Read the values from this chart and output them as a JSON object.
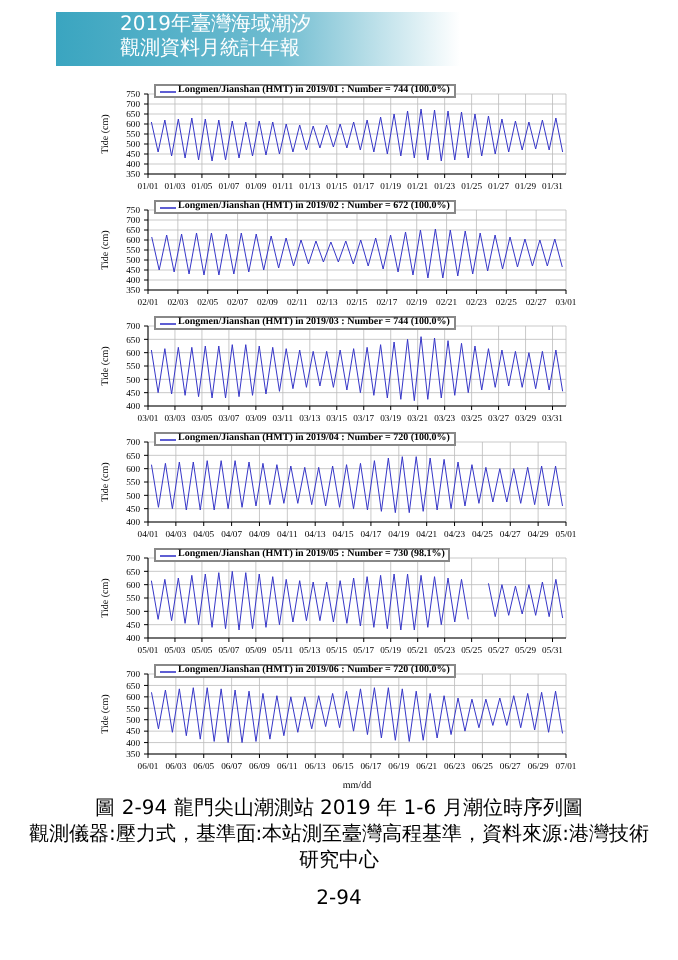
{
  "chart_data": [
    {
      "type": "line",
      "ylabel": "Tide (cm)",
      "ylim": [
        350,
        750
      ],
      "yticks": [
        350,
        400,
        450,
        500,
        550,
        600,
        650,
        700,
        750
      ],
      "grid": true,
      "legend": "top left",
      "annotations": [
        "2019年臺灣海域潮汐",
        "觀測資料月統計年報"
      ],
      "xlim": [
        "2019-01-01",
        "2019-02-01"
      ],
      "xticks": [
        {
          "value": "2019-01-01",
          "label": "01/01"
        },
        {
          "value": "2019-01-03",
          "label": "01/03"
        },
        {
          "value": "2019-01-05",
          "label": "01/05"
        },
        {
          "value": "2019-01-07",
          "label": "01/07"
        },
        {
          "value": "2019-01-09",
          "label": "01/09"
        },
        {
          "value": "2019-01-11",
          "label": "01/11"
        },
        {
          "value": "2019-01-13",
          "label": "01/13"
        },
        {
          "value": "2019-01-15",
          "label": "01/15"
        },
        {
          "value": "2019-01-17",
          "label": "01/17"
        },
        {
          "value": "2019-01-19",
          "label": "01/19"
        },
        {
          "value": "2019-01-21",
          "label": "01/21"
        },
        {
          "value": "2019-01-23",
          "label": "01/23"
        },
        {
          "value": "2019-01-25",
          "label": "01/25"
        },
        {
          "value": "2019-01-27",
          "label": "01/27"
        },
        {
          "value": "2019-01-29",
          "label": "01/29"
        },
        {
          "value": "2019-01-31",
          "label": "01/31"
        }
      ],
      "x": [
        "2019-01-01T06:00",
        "2019-01-01T18:00",
        "2019-01-02T06:00",
        "2019-01-02T18:00",
        "2019-01-03T06:00",
        "2019-01-03T18:00",
        "2019-01-04T06:00",
        "2019-01-04T18:00",
        "2019-01-05T06:00",
        "2019-01-05T18:00",
        "2019-01-06T06:00",
        "2019-01-06T18:00",
        "2019-01-07T06:00",
        "2019-01-07T18:00",
        "2019-01-08T06:00",
        "2019-01-08T18:00",
        "2019-01-09T06:00",
        "2019-01-09T18:00",
        "2019-01-10T06:00",
        "2019-01-10T18:00",
        "2019-01-11T06:00",
        "2019-01-11T18:00",
        "2019-01-12T06:00",
        "2019-01-12T18:00",
        "2019-01-13T06:00",
        "2019-01-13T18:00",
        "2019-01-14T06:00",
        "2019-01-14T18:00",
        "2019-01-15T06:00",
        "2019-01-15T18:00",
        "2019-01-16T06:00",
        "2019-01-16T18:00",
        "2019-01-17T06:00",
        "2019-01-17T18:00",
        "2019-01-18T06:00",
        "2019-01-18T18:00",
        "2019-01-19T06:00",
        "2019-01-19T18:00",
        "2019-01-20T06:00",
        "2019-01-20T18:00",
        "2019-01-21T06:00",
        "2019-01-21T18:00",
        "2019-01-22T06:00",
        "2019-01-22T18:00",
        "2019-01-23T06:00",
        "2019-01-23T18:00",
        "2019-01-24T06:00",
        "2019-01-24T18:00",
        "2019-01-25T06:00",
        "2019-01-25T18:00",
        "2019-01-26T06:00",
        "2019-01-26T18:00",
        "2019-01-27T06:00",
        "2019-01-27T18:00",
        "2019-01-28T06:00",
        "2019-01-28T18:00",
        "2019-01-29T06:00",
        "2019-01-29T18:00",
        "2019-01-30T06:00",
        "2019-01-30T18:00",
        "2019-01-31T06:00",
        "2019-01-31T18:00"
      ],
      "series": [
        {
          "name": "Longmen/Jianshan (HMT) in 2019/01 : Number = 744 (100.0%)",
          "color": "#3636c8",
          "values": [
            610,
            460,
            620,
            440,
            625,
            430,
            630,
            420,
            625,
            415,
            620,
            420,
            615,
            430,
            610,
            440,
            615,
            445,
            610,
            450,
            600,
            460,
            595,
            470,
            590,
            480,
            595,
            485,
            600,
            480,
            610,
            470,
            620,
            460,
            635,
            450,
            650,
            440,
            665,
            430,
            675,
            420,
            670,
            415,
            665,
            420,
            660,
            430,
            650,
            440,
            640,
            450,
            625,
            460,
            615,
            470,
            610,
            475,
            620,
            470,
            630,
            460
          ]
        }
      ]
    },
    {
      "type": "line",
      "ylabel": "Tide (cm)",
      "ylim": [
        350,
        750
      ],
      "yticks": [
        350,
        400,
        450,
        500,
        550,
        600,
        650,
        700,
        750
      ],
      "grid": true,
      "legend": "top left",
      "xlim": [
        "2019-02-01",
        "2019-03-01"
      ],
      "xticks": [
        {
          "value": "2019-02-01",
          "label": "02/01"
        },
        {
          "value": "2019-02-03",
          "label": "02/03"
        },
        {
          "value": "2019-02-05",
          "label": "02/05"
        },
        {
          "value": "2019-02-07",
          "label": "02/07"
        },
        {
          "value": "2019-02-09",
          "label": "02/09"
        },
        {
          "value": "2019-02-11",
          "label": "02/11"
        },
        {
          "value": "2019-02-13",
          "label": "02/13"
        },
        {
          "value": "2019-02-15",
          "label": "02/15"
        },
        {
          "value": "2019-02-17",
          "label": "02/17"
        },
        {
          "value": "2019-02-19",
          "label": "02/19"
        },
        {
          "value": "2019-02-21",
          "label": "02/21"
        },
        {
          "value": "2019-02-23",
          "label": "02/23"
        },
        {
          "value": "2019-02-25",
          "label": "02/25"
        },
        {
          "value": "2019-02-27",
          "label": "02/27"
        },
        {
          "value": "2019-03-01",
          "label": "03/01"
        }
      ],
      "x": [
        "2019-02-01T06:00",
        "2019-02-01T18:00",
        "2019-02-02T06:00",
        "2019-02-02T18:00",
        "2019-02-03T06:00",
        "2019-02-03T18:00",
        "2019-02-04T06:00",
        "2019-02-04T18:00",
        "2019-02-05T06:00",
        "2019-02-05T18:00",
        "2019-02-06T06:00",
        "2019-02-06T18:00",
        "2019-02-07T06:00",
        "2019-02-07T18:00",
        "2019-02-08T06:00",
        "2019-02-08T18:00",
        "2019-02-09T06:00",
        "2019-02-09T18:00",
        "2019-02-10T06:00",
        "2019-02-10T18:00",
        "2019-02-11T06:00",
        "2019-02-11T18:00",
        "2019-02-12T06:00",
        "2019-02-12T18:00",
        "2019-02-13T06:00",
        "2019-02-13T18:00",
        "2019-02-14T06:00",
        "2019-02-14T18:00",
        "2019-02-15T06:00",
        "2019-02-15T18:00",
        "2019-02-16T06:00",
        "2019-02-16T18:00",
        "2019-02-17T06:00",
        "2019-02-17T18:00",
        "2019-02-18T06:00",
        "2019-02-18T18:00",
        "2019-02-19T06:00",
        "2019-02-19T18:00",
        "2019-02-20T06:00",
        "2019-02-20T18:00",
        "2019-02-21T06:00",
        "2019-02-21T18:00",
        "2019-02-22T06:00",
        "2019-02-22T18:00",
        "2019-02-23T06:00",
        "2019-02-23T18:00",
        "2019-02-24T06:00",
        "2019-02-24T18:00",
        "2019-02-25T06:00",
        "2019-02-25T18:00",
        "2019-02-26T06:00",
        "2019-02-26T18:00",
        "2019-02-27T06:00",
        "2019-02-27T18:00",
        "2019-02-28T06:00",
        "2019-02-28T18:00"
      ],
      "series": [
        {
          "name": "Longmen/Jianshan (HMT) in 2019/02 : Number = 672 (100.0%)",
          "color": "#3636c8",
          "values": [
            615,
            450,
            625,
            440,
            630,
            430,
            635,
            425,
            635,
            425,
            630,
            430,
            635,
            440,
            630,
            450,
            620,
            460,
            610,
            470,
            600,
            480,
            595,
            490,
            590,
            490,
            595,
            480,
            600,
            470,
            610,
            455,
            625,
            440,
            640,
            425,
            650,
            410,
            655,
            410,
            650,
            420,
            645,
            430,
            635,
            445,
            625,
            455,
            615,
            465,
            605,
            470,
            600,
            470,
            605,
            465
          ]
        }
      ]
    },
    {
      "type": "line",
      "ylabel": "Tide (cm)",
      "ylim": [
        400,
        700
      ],
      "yticks": [
        400,
        450,
        500,
        550,
        600,
        650,
        700
      ],
      "grid": true,
      "legend": "top left",
      "xlim": [
        "2019-03-01",
        "2019-04-01"
      ],
      "xticks": [
        {
          "value": "2019-03-01",
          "label": "03/01"
        },
        {
          "value": "2019-03-03",
          "label": "03/03"
        },
        {
          "value": "2019-03-05",
          "label": "03/05"
        },
        {
          "value": "2019-03-07",
          "label": "03/07"
        },
        {
          "value": "2019-03-09",
          "label": "03/09"
        },
        {
          "value": "2019-03-11",
          "label": "03/11"
        },
        {
          "value": "2019-03-13",
          "label": "03/13"
        },
        {
          "value": "2019-03-15",
          "label": "03/15"
        },
        {
          "value": "2019-03-17",
          "label": "03/17"
        },
        {
          "value": "2019-03-19",
          "label": "03/19"
        },
        {
          "value": "2019-03-21",
          "label": "03/21"
        },
        {
          "value": "2019-03-23",
          "label": "03/23"
        },
        {
          "value": "2019-03-25",
          "label": "03/25"
        },
        {
          "value": "2019-03-27",
          "label": "03/27"
        },
        {
          "value": "2019-03-29",
          "label": "03/29"
        },
        {
          "value": "2019-03-31",
          "label": "03/31"
        }
      ],
      "x": [
        "2019-03-01T06:00",
        "2019-03-01T18:00",
        "2019-03-02T06:00",
        "2019-03-02T18:00",
        "2019-03-03T06:00",
        "2019-03-03T18:00",
        "2019-03-04T06:00",
        "2019-03-04T18:00",
        "2019-03-05T06:00",
        "2019-03-05T18:00",
        "2019-03-06T06:00",
        "2019-03-06T18:00",
        "2019-03-07T06:00",
        "2019-03-07T18:00",
        "2019-03-08T06:00",
        "2019-03-08T18:00",
        "2019-03-09T06:00",
        "2019-03-09T18:00",
        "2019-03-10T06:00",
        "2019-03-10T18:00",
        "2019-03-11T06:00",
        "2019-03-11T18:00",
        "2019-03-12T06:00",
        "2019-03-12T18:00",
        "2019-03-13T06:00",
        "2019-03-13T18:00",
        "2019-03-14T06:00",
        "2019-03-14T18:00",
        "2019-03-15T06:00",
        "2019-03-15T18:00",
        "2019-03-16T06:00",
        "2019-03-16T18:00",
        "2019-03-17T06:00",
        "2019-03-17T18:00",
        "2019-03-18T06:00",
        "2019-03-18T18:00",
        "2019-03-19T06:00",
        "2019-03-19T18:00",
        "2019-03-20T06:00",
        "2019-03-20T18:00",
        "2019-03-21T06:00",
        "2019-03-21T18:00",
        "2019-03-22T06:00",
        "2019-03-22T18:00",
        "2019-03-23T06:00",
        "2019-03-23T18:00",
        "2019-03-24T06:00",
        "2019-03-24T18:00",
        "2019-03-25T06:00",
        "2019-03-25T18:00",
        "2019-03-26T06:00",
        "2019-03-26T18:00",
        "2019-03-27T06:00",
        "2019-03-27T18:00",
        "2019-03-28T06:00",
        "2019-03-28T18:00",
        "2019-03-29T06:00",
        "2019-03-29T18:00",
        "2019-03-30T06:00",
        "2019-03-30T18:00",
        "2019-03-31T06:00",
        "2019-03-31T18:00"
      ],
      "series": [
        {
          "name": "Longmen/Jianshan (HMT) in 2019/03 : Number = 744 (100.0%)",
          "color": "#3636c8",
          "values": [
            610,
            450,
            615,
            445,
            620,
            440,
            620,
            435,
            625,
            430,
            625,
            430,
            630,
            435,
            630,
            440,
            625,
            445,
            620,
            455,
            615,
            465,
            610,
            470,
            605,
            475,
            605,
            470,
            610,
            460,
            615,
            450,
            620,
            440,
            630,
            430,
            640,
            425,
            650,
            420,
            660,
            425,
            655,
            430,
            645,
            440,
            635,
            450,
            625,
            460,
            615,
            470,
            610,
            475,
            605,
            470,
            600,
            465,
            605,
            460,
            610,
            455
          ]
        }
      ]
    },
    {
      "type": "line",
      "ylabel": "Tide (cm)",
      "ylim": [
        400,
        700
      ],
      "yticks": [
        400,
        450,
        500,
        550,
        600,
        650,
        700
      ],
      "grid": true,
      "legend": "top left",
      "xlim": [
        "2019-04-01",
        "2019-05-01"
      ],
      "xticks": [
        {
          "value": "2019-04-01",
          "label": "04/01"
        },
        {
          "value": "2019-04-03",
          "label": "04/03"
        },
        {
          "value": "2019-04-05",
          "label": "04/05"
        },
        {
          "value": "2019-04-07",
          "label": "04/07"
        },
        {
          "value": "2019-04-09",
          "label": "04/09"
        },
        {
          "value": "2019-04-11",
          "label": "04/11"
        },
        {
          "value": "2019-04-13",
          "label": "04/13"
        },
        {
          "value": "2019-04-15",
          "label": "04/15"
        },
        {
          "value": "2019-04-17",
          "label": "04/17"
        },
        {
          "value": "2019-04-19",
          "label": "04/19"
        },
        {
          "value": "2019-04-21",
          "label": "04/21"
        },
        {
          "value": "2019-04-23",
          "label": "04/23"
        },
        {
          "value": "2019-04-25",
          "label": "04/25"
        },
        {
          "value": "2019-04-27",
          "label": "04/27"
        },
        {
          "value": "2019-04-29",
          "label": "04/29"
        },
        {
          "value": "2019-05-01",
          "label": "05/01"
        }
      ],
      "x": [
        "2019-04-01T06:00",
        "2019-04-01T18:00",
        "2019-04-02T06:00",
        "2019-04-02T18:00",
        "2019-04-03T06:00",
        "2019-04-03T18:00",
        "2019-04-04T06:00",
        "2019-04-04T18:00",
        "2019-04-05T06:00",
        "2019-04-05T18:00",
        "2019-04-06T06:00",
        "2019-04-06T18:00",
        "2019-04-07T06:00",
        "2019-04-07T18:00",
        "2019-04-08T06:00",
        "2019-04-08T18:00",
        "2019-04-09T06:00",
        "2019-04-09T18:00",
        "2019-04-10T06:00",
        "2019-04-10T18:00",
        "2019-04-11T06:00",
        "2019-04-11T18:00",
        "2019-04-12T06:00",
        "2019-04-12T18:00",
        "2019-04-13T06:00",
        "2019-04-13T18:00",
        "2019-04-14T06:00",
        "2019-04-14T18:00",
        "2019-04-15T06:00",
        "2019-04-15T18:00",
        "2019-04-16T06:00",
        "2019-04-16T18:00",
        "2019-04-17T06:00",
        "2019-04-17T18:00",
        "2019-04-18T06:00",
        "2019-04-18T18:00",
        "2019-04-19T06:00",
        "2019-04-19T18:00",
        "2019-04-20T06:00",
        "2019-04-20T18:00",
        "2019-04-21T06:00",
        "2019-04-21T18:00",
        "2019-04-22T06:00",
        "2019-04-22T18:00",
        "2019-04-23T06:00",
        "2019-04-23T18:00",
        "2019-04-24T06:00",
        "2019-04-24T18:00",
        "2019-04-25T06:00",
        "2019-04-25T18:00",
        "2019-04-26T06:00",
        "2019-04-26T18:00",
        "2019-04-27T06:00",
        "2019-04-27T18:00",
        "2019-04-28T06:00",
        "2019-04-28T18:00",
        "2019-04-29T06:00",
        "2019-04-29T18:00",
        "2019-04-30T06:00",
        "2019-04-30T18:00"
      ],
      "series": [
        {
          "name": "Longmen/Jianshan (HMT) in 2019/04 : Number = 720 (100.0%)",
          "color": "#3636c8",
          "values": [
            615,
            455,
            620,
            450,
            625,
            445,
            625,
            445,
            630,
            445,
            630,
            450,
            630,
            455,
            625,
            460,
            620,
            465,
            615,
            470,
            610,
            470,
            605,
            465,
            605,
            460,
            610,
            455,
            615,
            450,
            620,
            445,
            630,
            440,
            640,
            435,
            645,
            435,
            645,
            440,
            640,
            445,
            635,
            450,
            625,
            460,
            615,
            470,
            605,
            475,
            600,
            475,
            600,
            470,
            605,
            465,
            610,
            460,
            610,
            460
          ]
        }
      ]
    },
    {
      "type": "line",
      "ylabel": "Tide (cm)",
      "ylim": [
        400,
        700
      ],
      "yticks": [
        400,
        450,
        500,
        550,
        600,
        650,
        700
      ],
      "grid": true,
      "legend": "top left",
      "xlim": [
        "2019-05-01",
        "2019-06-01"
      ],
      "xticks": [
        {
          "value": "2019-05-01",
          "label": "05/01"
        },
        {
          "value": "2019-05-03",
          "label": "05/03"
        },
        {
          "value": "2019-05-05",
          "label": "05/05"
        },
        {
          "value": "2019-05-07",
          "label": "05/07"
        },
        {
          "value": "2019-05-09",
          "label": "05/09"
        },
        {
          "value": "2019-05-11",
          "label": "05/11"
        },
        {
          "value": "2019-05-13",
          "label": "05/13"
        },
        {
          "value": "2019-05-15",
          "label": "05/15"
        },
        {
          "value": "2019-05-17",
          "label": "05/17"
        },
        {
          "value": "2019-05-19",
          "label": "05/19"
        },
        {
          "value": "2019-05-21",
          "label": "05/21"
        },
        {
          "value": "2019-05-23",
          "label": "05/23"
        },
        {
          "value": "2019-05-25",
          "label": "05/25"
        },
        {
          "value": "2019-05-27",
          "label": "05/27"
        },
        {
          "value": "2019-05-29",
          "label": "05/29"
        },
        {
          "value": "2019-05-31",
          "label": "05/31"
        }
      ],
      "x": [
        "2019-05-01T06:00",
        "2019-05-01T18:00",
        "2019-05-02T06:00",
        "2019-05-02T18:00",
        "2019-05-03T06:00",
        "2019-05-03T18:00",
        "2019-05-04T06:00",
        "2019-05-04T18:00",
        "2019-05-05T06:00",
        "2019-05-05T18:00",
        "2019-05-06T06:00",
        "2019-05-06T18:00",
        "2019-05-07T06:00",
        "2019-05-07T18:00",
        "2019-05-08T06:00",
        "2019-05-08T18:00",
        "2019-05-09T06:00",
        "2019-05-09T18:00",
        "2019-05-10T06:00",
        "2019-05-10T18:00",
        "2019-05-11T06:00",
        "2019-05-11T18:00",
        "2019-05-12T06:00",
        "2019-05-12T18:00",
        "2019-05-13T06:00",
        "2019-05-13T18:00",
        "2019-05-14T06:00",
        "2019-05-14T18:00",
        "2019-05-15T06:00",
        "2019-05-15T18:00",
        "2019-05-16T06:00",
        "2019-05-16T18:00",
        "2019-05-17T06:00",
        "2019-05-17T18:00",
        "2019-05-18T06:00",
        "2019-05-18T18:00",
        "2019-05-19T06:00",
        "2019-05-19T18:00",
        "2019-05-20T06:00",
        "2019-05-20T18:00",
        "2019-05-21T06:00",
        "2019-05-21T18:00",
        "2019-05-22T06:00",
        "2019-05-22T18:00",
        "2019-05-23T06:00",
        "2019-05-23T18:00",
        "2019-05-24T06:00",
        "2019-05-24T18:00",
        "2019-05-25T06:00",
        "2019-05-25T18:00",
        "2019-05-26T06:00",
        "2019-05-26T18:00",
        "2019-05-27T06:00",
        "2019-05-27T18:00",
        "2019-05-28T06:00",
        "2019-05-28T18:00",
        "2019-05-29T06:00",
        "2019-05-29T18:00",
        "2019-05-30T06:00",
        "2019-05-30T18:00",
        "2019-05-31T06:00",
        "2019-05-31T18:00"
      ],
      "series": [
        {
          "name": "Longmen/Jianshan (HMT) in 2019/05 : Number = 730 (98.1%)",
          "color": "#3636c8",
          "values": [
            615,
            470,
            620,
            465,
            625,
            455,
            635,
            450,
            640,
            440,
            645,
            435,
            650,
            430,
            645,
            435,
            640,
            440,
            630,
            450,
            620,
            460,
            615,
            465,
            610,
            465,
            610,
            460,
            615,
            455,
            625,
            445,
            630,
            440,
            635,
            435,
            640,
            430,
            640,
            430,
            635,
            440,
            630,
            450,
            625,
            460,
            620,
            470,
            null,
            null,
            605,
            480,
            600,
            485,
            595,
            490,
            600,
            485,
            610,
            480,
            620,
            475
          ]
        }
      ]
    },
    {
      "type": "line",
      "ylabel": "Tide (cm)",
      "xlabel": "mm/dd",
      "ylim": [
        350,
        700
      ],
      "yticks": [
        350,
        400,
        450,
        500,
        550,
        600,
        650,
        700
      ],
      "grid": true,
      "legend": "top left",
      "annotations": [
        "圖 2-94 龍門尖山潮測站 2019 年 1-6 月潮位時序列圖",
        "觀測儀器:壓力式，基準面:本站測至臺灣高程基準，資料來源:港灣技術研究中心",
        "2-94"
      ],
      "xlim": [
        "2019-06-01",
        "2019-07-01"
      ],
      "xticks": [
        {
          "value": "2019-06-01",
          "label": "06/01"
        },
        {
          "value": "2019-06-03",
          "label": "06/03"
        },
        {
          "value": "2019-06-05",
          "label": "06/05"
        },
        {
          "value": "2019-06-07",
          "label": "06/07"
        },
        {
          "value": "2019-06-09",
          "label": "06/09"
        },
        {
          "value": "2019-06-11",
          "label": "06/11"
        },
        {
          "value": "2019-06-13",
          "label": "06/13"
        },
        {
          "value": "2019-06-15",
          "label": "06/15"
        },
        {
          "value": "2019-06-17",
          "label": "06/17"
        },
        {
          "value": "2019-06-19",
          "label": "06/19"
        },
        {
          "value": "2019-06-21",
          "label": "06/21"
        },
        {
          "value": "2019-06-23",
          "label": "06/23"
        },
        {
          "value": "2019-06-25",
          "label": "06/25"
        },
        {
          "value": "2019-06-27",
          "label": "06/27"
        },
        {
          "value": "2019-06-29",
          "label": "06/29"
        },
        {
          "value": "2019-07-01",
          "label": "07/01"
        }
      ],
      "x": [
        "2019-06-01T06:00",
        "2019-06-01T18:00",
        "2019-06-02T06:00",
        "2019-06-02T18:00",
        "2019-06-03T06:00",
        "2019-06-03T18:00",
        "2019-06-04T06:00",
        "2019-06-04T18:00",
        "2019-06-05T06:00",
        "2019-06-05T18:00",
        "2019-06-06T06:00",
        "2019-06-06T18:00",
        "2019-06-07T06:00",
        "2019-06-07T18:00",
        "2019-06-08T06:00",
        "2019-06-08T18:00",
        "2019-06-09T06:00",
        "2019-06-09T18:00",
        "2019-06-10T06:00",
        "2019-06-10T18:00",
        "2019-06-11T06:00",
        "2019-06-11T18:00",
        "2019-06-12T06:00",
        "2019-06-12T18:00",
        "2019-06-13T06:00",
        "2019-06-13T18:00",
        "2019-06-14T06:00",
        "2019-06-14T18:00",
        "2019-06-15T06:00",
        "2019-06-15T18:00",
        "2019-06-16T06:00",
        "2019-06-16T18:00",
        "2019-06-17T06:00",
        "2019-06-17T18:00",
        "2019-06-18T06:00",
        "2019-06-18T18:00",
        "2019-06-19T06:00",
        "2019-06-19T18:00",
        "2019-06-20T06:00",
        "2019-06-20T18:00",
        "2019-06-21T06:00",
        "2019-06-21T18:00",
        "2019-06-22T06:00",
        "2019-06-22T18:00",
        "2019-06-23T06:00",
        "2019-06-23T18:00",
        "2019-06-24T06:00",
        "2019-06-24T18:00",
        "2019-06-25T06:00",
        "2019-06-25T18:00",
        "2019-06-26T06:00",
        "2019-06-26T18:00",
        "2019-06-27T06:00",
        "2019-06-27T18:00",
        "2019-06-28T06:00",
        "2019-06-28T18:00",
        "2019-06-29T06:00",
        "2019-06-29T18:00",
        "2019-06-30T06:00",
        "2019-06-30T18:00"
      ],
      "series": [
        {
          "name": "Longmen/Jianshan (HMT) in 2019/06 : Number = 720 (100.0%)",
          "color": "#3636c8",
          "values": [
            620,
            460,
            630,
            445,
            635,
            430,
            640,
            415,
            640,
            405,
            635,
            400,
            630,
            400,
            625,
            405,
            615,
            415,
            605,
            430,
            600,
            445,
            600,
            460,
            605,
            470,
            615,
            465,
            625,
            450,
            635,
            435,
            640,
            420,
            640,
            410,
            635,
            405,
            625,
            410,
            615,
            420,
            605,
            435,
            595,
            450,
            590,
            465,
            590,
            475,
            595,
            475,
            605,
            465,
            615,
            455,
            620,
            445,
            625,
            440
          ]
        }
      ]
    }
  ]
}
